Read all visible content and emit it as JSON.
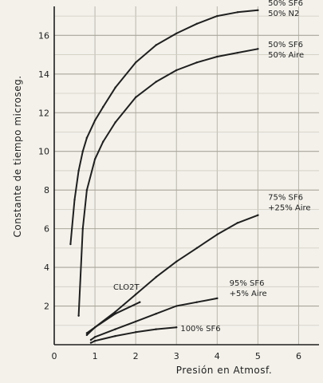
{
  "chart_data": {
    "type": "line",
    "title": "",
    "xlabel": "Presión en Atmosf.",
    "ylabel": "Constante de tiempo microseg.",
    "xlim": [
      0,
      6.5
    ],
    "ylim": [
      0,
      17.5
    ],
    "x_ticks": [
      "0",
      "1",
      "2",
      "3",
      "4",
      "5",
      "6"
    ],
    "y_ticks": [
      "2",
      "4",
      "6",
      "8",
      "10",
      "12",
      "14",
      "16"
    ],
    "grid": true,
    "series": [
      {
        "name": "50% SF6 50% N2",
        "label_lines": [
          "50% SF6",
          "50% N2"
        ],
        "x": [
          0.4,
          0.5,
          0.6,
          0.7,
          0.8,
          1.0,
          1.2,
          1.5,
          2.0,
          2.5,
          3.0,
          3.5,
          4.0,
          4.5,
          5.0
        ],
        "y": [
          5.2,
          7.5,
          9.0,
          10.0,
          10.7,
          11.6,
          12.3,
          13.3,
          14.6,
          15.5,
          16.1,
          16.6,
          17.0,
          17.2,
          17.3
        ]
      },
      {
        "name": "50% SF6 50% Aire",
        "label_lines": [
          "50% SF6",
          "50% Aire"
        ],
        "x": [
          0.6,
          0.7,
          0.8,
          1.0,
          1.2,
          1.5,
          2.0,
          2.5,
          3.0,
          3.5,
          4.0,
          4.5,
          5.0
        ],
        "y": [
          1.5,
          6.0,
          8.0,
          9.6,
          10.5,
          11.5,
          12.8,
          13.6,
          14.2,
          14.6,
          14.9,
          15.1,
          15.3
        ]
      },
      {
        "name": "75% SF6 +25% Aire",
        "label_lines": [
          "75% SF6",
          "+25% Aire"
        ],
        "x": [
          0.8,
          1.0,
          1.5,
          2.0,
          2.5,
          3.0,
          3.5,
          4.0,
          4.5,
          5.0
        ],
        "y": [
          0.5,
          0.9,
          1.7,
          2.6,
          3.5,
          4.3,
          5.0,
          5.7,
          6.3,
          6.7
        ]
      },
      {
        "name": "CLO2T",
        "label_lines": [
          "CLO2T"
        ],
        "x": [
          0.8,
          1.0,
          1.5,
          2.1
        ],
        "y": [
          0.6,
          0.9,
          1.6,
          2.2
        ]
      },
      {
        "name": "95% SF6 +5% Aire",
        "label_lines": [
          "95% SF6",
          "+5% Aire"
        ],
        "x": [
          0.9,
          1.0,
          1.5,
          2.0,
          2.5,
          3.0,
          3.5,
          4.0
        ],
        "y": [
          0.25,
          0.4,
          0.8,
          1.2,
          1.6,
          2.0,
          2.2,
          2.4
        ]
      },
      {
        "name": "100% SF6",
        "label_lines": [
          "100% SF6"
        ],
        "x": [
          0.9,
          1.0,
          1.5,
          2.0,
          2.5,
          3.0
        ],
        "y": [
          0.1,
          0.2,
          0.45,
          0.65,
          0.8,
          0.9
        ]
      }
    ]
  }
}
